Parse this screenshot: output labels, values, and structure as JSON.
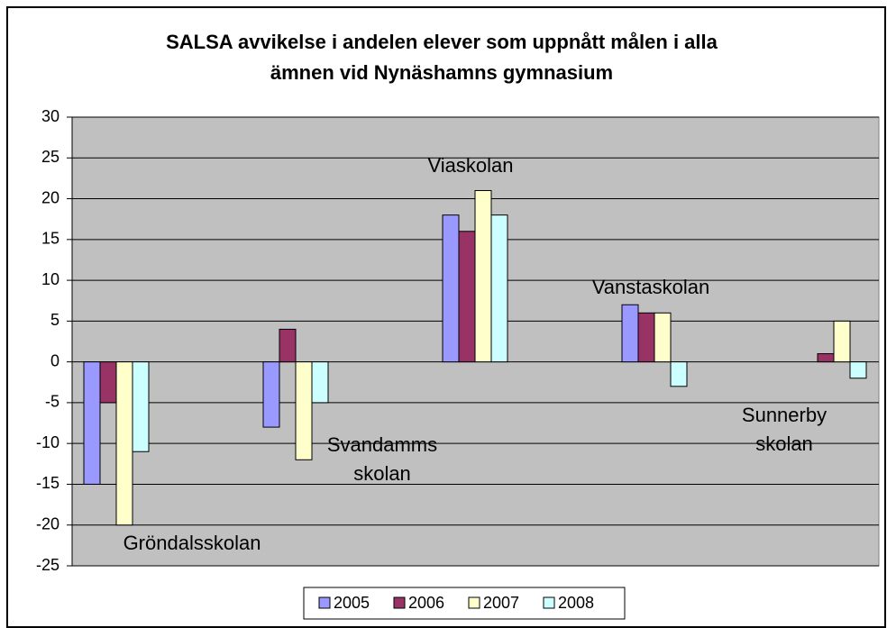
{
  "chart_data": {
    "type": "bar",
    "title": [
      "SALSA avvikelse i andelen elever som uppnått målen i alla",
      "ämnen vid Nynäshamns gymnasium"
    ],
    "categories": [
      "Gröndalsskolan",
      "Svandamms skolan",
      "Viaskolan",
      "Vanstaskolan",
      "Sunnerby skolan"
    ],
    "series": [
      {
        "name": "2005",
        "color": "#9999ff",
        "values": [
          -15,
          -8,
          18,
          7,
          null
        ]
      },
      {
        "name": "2006",
        "color": "#993366",
        "values": [
          -5,
          4,
          16,
          6,
          1
        ]
      },
      {
        "name": "2007",
        "color": "#ffffcc",
        "values": [
          -20,
          -12,
          21,
          6,
          5
        ]
      },
      {
        "name": "2008",
        "color": "#ccffff",
        "values": [
          -11,
          -5,
          18,
          -3,
          -2
        ]
      }
    ],
    "ylim": [
      -25,
      30
    ],
    "yticks": [
      -25,
      -20,
      -15,
      -10,
      -5,
      0,
      5,
      10,
      15,
      20,
      25,
      30
    ],
    "grid": true,
    "legend": "bottom"
  }
}
